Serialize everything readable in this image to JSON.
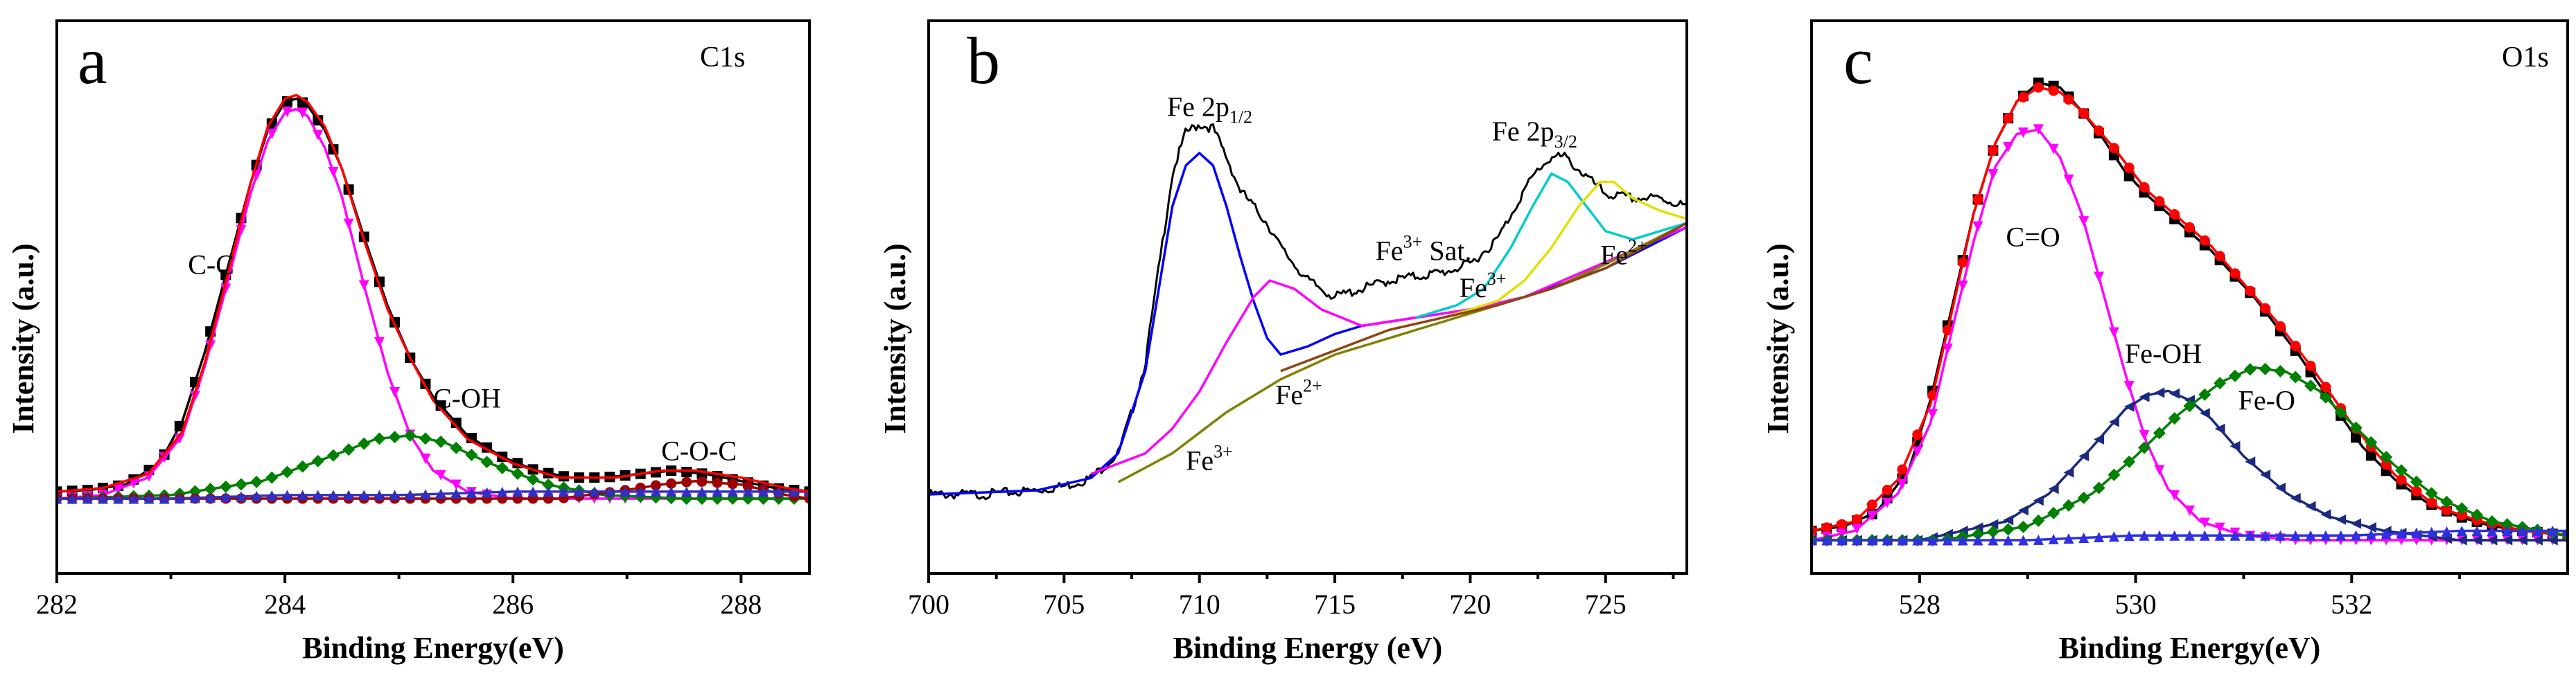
{
  "chart_data": [
    {
      "type": "line",
      "panel": "a",
      "title": "C1s",
      "xlabel": "Binding Energy(eV)",
      "ylabel": "Intensity (a.u.)",
      "xlim": [
        282,
        288.6
      ],
      "ylim": [
        0,
        1.2
      ],
      "xticks": [
        282,
        284,
        286,
        288
      ],
      "annotations": [
        {
          "text": "C-C",
          "x": 283.15,
          "y": 0.64
        },
        {
          "text": "C-OH",
          "x": 285.3,
          "y": 0.26
        },
        {
          "text": "C-O-C",
          "x": 287.3,
          "y": 0.11
        }
      ],
      "series": [
        {
          "marker": "square",
          "color": "#000000",
          "x": [
            282.0,
            282.3,
            282.6,
            282.9,
            283.1,
            283.3,
            283.5,
            283.7,
            283.85,
            284.0,
            284.1,
            284.2,
            284.35,
            284.5,
            284.7,
            284.9,
            285.1,
            285.3,
            285.6,
            285.9,
            286.2,
            286.5,
            286.8,
            287.1,
            287.4,
            287.7,
            288.0,
            288.3,
            288.6
          ],
          "y": [
            0.02,
            0.025,
            0.04,
            0.1,
            0.22,
            0.42,
            0.66,
            0.9,
            1.05,
            1.13,
            1.14,
            1.12,
            1.05,
            0.94,
            0.74,
            0.55,
            0.4,
            0.29,
            0.18,
            0.12,
            0.08,
            0.06,
            0.06,
            0.07,
            0.08,
            0.07,
            0.05,
            0.03,
            0.02
          ]
        },
        {
          "color": "#ff00ff",
          "marker": "triangle-down",
          "x": [
            282.0,
            282.4,
            282.8,
            283.1,
            283.3,
            283.5,
            283.7,
            283.85,
            284.0,
            284.1,
            284.2,
            284.35,
            284.5,
            284.7,
            284.9,
            285.1,
            285.3,
            285.6,
            286.0,
            286.5,
            287.0,
            288.6
          ],
          "y": [
            0.0,
            0.01,
            0.06,
            0.18,
            0.38,
            0.62,
            0.87,
            1.02,
            1.1,
            1.11,
            1.09,
            1.0,
            0.86,
            0.6,
            0.36,
            0.18,
            0.08,
            0.02,
            0.0,
            0.0,
            0.0,
            0.0
          ]
        },
        {
          "color": "#008000",
          "marker": "diamond",
          "x": [
            282.0,
            283.0,
            283.8,
            284.4,
            284.8,
            285.1,
            285.4,
            285.8,
            286.3,
            286.8,
            287.5,
            288.6
          ],
          "y": [
            0.0,
            0.01,
            0.05,
            0.12,
            0.17,
            0.18,
            0.16,
            0.1,
            0.04,
            0.01,
            0.0,
            0.0
          ]
        },
        {
          "color": "#a00000",
          "marker": "circle",
          "x": [
            282.0,
            286.4,
            286.9,
            287.3,
            287.6,
            288.0,
            288.4,
            288.6
          ],
          "y": [
            0.0,
            0.0,
            0.02,
            0.04,
            0.05,
            0.04,
            0.01,
            0.0
          ]
        },
        {
          "color": "#3030c0",
          "marker": "triangle-up",
          "x": [
            282.0,
            283.0,
            284.0,
            285.0,
            286.0,
            287.0,
            288.0,
            288.6
          ],
          "y": [
            0.0,
            0.0,
            0.01,
            0.01,
            0.02,
            0.02,
            0.02,
            0.02
          ]
        },
        {
          "color": "#ff0000",
          "x": [
            282.0,
            282.4,
            282.8,
            283.1,
            283.3,
            283.5,
            283.7,
            283.85,
            284.0,
            284.1,
            284.2,
            284.35,
            284.5,
            284.7,
            284.9,
            285.1,
            285.3,
            285.6,
            286.0,
            286.4,
            286.9,
            287.3,
            287.6,
            288.0,
            288.4,
            288.6
          ],
          "y": [
            0.02,
            0.03,
            0.07,
            0.19,
            0.39,
            0.64,
            0.9,
            1.06,
            1.14,
            1.15,
            1.13,
            1.06,
            0.94,
            0.73,
            0.54,
            0.4,
            0.28,
            0.17,
            0.1,
            0.06,
            0.06,
            0.08,
            0.08,
            0.06,
            0.03,
            0.02
          ]
        }
      ]
    },
    {
      "type": "line",
      "panel": "b",
      "xlabel": "Binding Energy (eV)",
      "ylabel": "Intensity (a.u.)",
      "xlim": [
        700,
        728
      ],
      "ylim": [
        0,
        1.0
      ],
      "xticks": [
        700,
        705,
        710,
        715,
        720,
        725
      ],
      "annotations": [
        {
          "text": "Fe 2p",
          "sub": "1/2",
          "x": 708.8,
          "y": 0.92
        },
        {
          "text": "Fe 2p",
          "sub": "3/2",
          "x": 720.8,
          "y": 0.86
        },
        {
          "text": "Fe",
          "sup": "3+",
          "extra": " Sat.",
          "x": 716.5,
          "y": 0.57
        },
        {
          "text": "Fe",
          "sup": "2+",
          "x": 712.8,
          "y": 0.22
        },
        {
          "text": "Fe",
          "sup": "3+",
          "x": 709.5,
          "y": 0.06
        },
        {
          "text": "Fe",
          "sup": "3+",
          "x": 719.6,
          "y": 0.48
        },
        {
          "text": "Fe",
          "sup": "2+",
          "x": 724.8,
          "y": 0.56
        }
      ],
      "series": [
        {
          "color": "#000000",
          "style": "noisy",
          "x": [
            700,
            702,
            704,
            705,
            706,
            707,
            707.5,
            708,
            708.5,
            709,
            709.5,
            710,
            710.5,
            711,
            711.5,
            712,
            712.5,
            713,
            714,
            715,
            716,
            717,
            718,
            719,
            720,
            721,
            721.5,
            722,
            722.5,
            723,
            723.5,
            724,
            724.5,
            725,
            726,
            727,
            728
          ],
          "y": [
            0.0,
            0.0,
            0.01,
            0.02,
            0.04,
            0.1,
            0.2,
            0.32,
            0.55,
            0.78,
            0.88,
            0.9,
            0.89,
            0.82,
            0.74,
            0.7,
            0.66,
            0.6,
            0.52,
            0.48,
            0.5,
            0.52,
            0.53,
            0.54,
            0.56,
            0.62,
            0.68,
            0.74,
            0.79,
            0.82,
            0.82,
            0.79,
            0.76,
            0.73,
            0.72,
            0.72,
            0.7
          ]
        },
        {
          "color": "#0000ff",
          "x": [
            700,
            704,
            706,
            707,
            708,
            708.5,
            709,
            709.5,
            710,
            710.5,
            711,
            711.5,
            712,
            712.5,
            713,
            714,
            715,
            716,
            718,
            720,
            722,
            725,
            728
          ],
          "y": [
            0.0,
            0.01,
            0.04,
            0.1,
            0.3,
            0.5,
            0.7,
            0.8,
            0.83,
            0.8,
            0.7,
            0.58,
            0.47,
            0.38,
            0.34,
            0.36,
            0.39,
            0.41,
            0.43,
            0.45,
            0.48,
            0.55,
            0.65
          ]
        },
        {
          "color": "#ff00ff",
          "x": [
            706,
            708,
            709,
            710,
            711,
            712,
            712.6,
            713.5,
            714.5,
            716,
            718,
            720,
            722,
            728
          ],
          "y": [
            0.05,
            0.1,
            0.16,
            0.25,
            0.37,
            0.48,
            0.52,
            0.5,
            0.45,
            0.41,
            0.43,
            0.45,
            0.48,
            0.65
          ]
        },
        {
          "color": "#808000",
          "x": [
            707,
            709,
            711,
            713,
            715,
            717,
            719,
            721,
            723,
            725,
            728
          ],
          "y": [
            0.03,
            0.1,
            0.2,
            0.28,
            0.34,
            0.38,
            0.42,
            0.46,
            0.5,
            0.56,
            0.66
          ]
        },
        {
          "color": "#00cccc",
          "x": [
            718,
            719.5,
            720.5,
            721.5,
            722.3,
            723,
            723.6,
            724.3,
            725,
            726,
            727,
            728
          ],
          "y": [
            0.43,
            0.46,
            0.5,
            0.6,
            0.7,
            0.78,
            0.76,
            0.7,
            0.64,
            0.62,
            0.64,
            0.66
          ]
        },
        {
          "color": "#e0e000",
          "x": [
            719,
            721,
            722,
            723,
            724,
            724.8,
            725.3,
            726,
            727,
            728
          ],
          "y": [
            0.43,
            0.47,
            0.52,
            0.6,
            0.7,
            0.76,
            0.76,
            0.72,
            0.69,
            0.67
          ]
        },
        {
          "color": "#8b4513",
          "x": [
            713,
            715,
            717,
            719,
            721,
            723,
            725,
            728
          ],
          "y": [
            0.3,
            0.35,
            0.4,
            0.43,
            0.46,
            0.5,
            0.55,
            0.66
          ]
        }
      ]
    },
    {
      "type": "line",
      "panel": "c",
      "title": "O1s",
      "xlabel": "Binding Energy(eV)",
      "ylabel": "Intensity (a.u.)",
      "xlim": [
        527,
        534
      ],
      "ylim": [
        0,
        1.0
      ],
      "xticks": [
        528,
        530,
        532
      ],
      "annotations": [
        {
          "text": "C=O",
          "x": 528.8,
          "y": 0.63
        },
        {
          "text": "Fe-OH",
          "x": 529.9,
          "y": 0.38
        },
        {
          "text": "Fe-O",
          "x": 530.95,
          "y": 0.28
        }
      ],
      "series": [
        {
          "marker": "square",
          "color": "#000000",
          "x": [
            527.0,
            527.3,
            527.6,
            527.9,
            528.1,
            528.3,
            528.5,
            528.7,
            528.9,
            529.1,
            529.3,
            529.5,
            529.7,
            529.9,
            530.1,
            530.3,
            530.5,
            530.7,
            530.9,
            531.1,
            531.3,
            531.5,
            531.8,
            532.1,
            532.4,
            532.7,
            533.0,
            533.3,
            533.6,
            534.0
          ],
          "y": [
            0.02,
            0.03,
            0.06,
            0.15,
            0.3,
            0.5,
            0.7,
            0.85,
            0.94,
            0.98,
            0.97,
            0.92,
            0.86,
            0.79,
            0.74,
            0.7,
            0.66,
            0.62,
            0.57,
            0.52,
            0.46,
            0.4,
            0.3,
            0.2,
            0.13,
            0.08,
            0.05,
            0.03,
            0.02,
            0.01
          ]
        },
        {
          "marker": "circle",
          "color": "#ff0000",
          "x": [
            527.0,
            527.4,
            527.8,
            528.1,
            528.3,
            528.5,
            528.7,
            528.9,
            529.1,
            529.3,
            529.5,
            529.8,
            530.1,
            530.4,
            530.7,
            531.0,
            531.3,
            531.6,
            532.0,
            532.4,
            532.8,
            533.2,
            533.6,
            534.0
          ],
          "y": [
            0.02,
            0.04,
            0.13,
            0.29,
            0.49,
            0.7,
            0.85,
            0.94,
            0.97,
            0.96,
            0.92,
            0.84,
            0.75,
            0.69,
            0.63,
            0.55,
            0.47,
            0.38,
            0.25,
            0.14,
            0.07,
            0.04,
            0.02,
            0.01
          ]
        },
        {
          "marker": "triangle-down",
          "color": "#ff00ff",
          "x": [
            527.0,
            527.4,
            527.8,
            528.1,
            528.3,
            528.5,
            528.7,
            528.9,
            529.1,
            529.3,
            529.5,
            529.7,
            529.9,
            530.1,
            530.3,
            530.6,
            531.0,
            531.5,
            532.0,
            534.0
          ],
          "y": [
            0.0,
            0.02,
            0.1,
            0.25,
            0.45,
            0.64,
            0.8,
            0.87,
            0.88,
            0.82,
            0.7,
            0.53,
            0.36,
            0.21,
            0.11,
            0.04,
            0.01,
            0.0,
            0.0,
            0.0
          ]
        },
        {
          "marker": "triangle-left",
          "color": "#1a2a80",
          "x": [
            527.0,
            528.0,
            528.8,
            529.2,
            529.6,
            529.9,
            530.1,
            530.3,
            530.5,
            530.7,
            531.0,
            531.4,
            531.8,
            532.3,
            533.0,
            534.0
          ],
          "y": [
            0.0,
            0.0,
            0.04,
            0.1,
            0.2,
            0.28,
            0.31,
            0.32,
            0.3,
            0.26,
            0.18,
            0.1,
            0.05,
            0.02,
            0.0,
            0.0
          ]
        },
        {
          "marker": "diamond",
          "color": "#008000",
          "x": [
            527.0,
            528.2,
            529.0,
            529.6,
            530.0,
            530.4,
            530.8,
            531.1,
            531.4,
            531.7,
            532.0,
            532.4,
            532.8,
            533.3,
            534.0
          ],
          "y": [
            0.0,
            0.0,
            0.03,
            0.1,
            0.18,
            0.27,
            0.34,
            0.37,
            0.36,
            0.32,
            0.25,
            0.16,
            0.09,
            0.04,
            0.01
          ]
        },
        {
          "marker": "triangle-up",
          "color": "#3030e0",
          "x": [
            527.0,
            528.0,
            529.0,
            530.0,
            531.0,
            532.0,
            533.0,
            534.0
          ],
          "y": [
            0.0,
            0.0,
            0.0,
            0.01,
            0.01,
            0.01,
            0.02,
            0.02
          ]
        }
      ]
    }
  ]
}
